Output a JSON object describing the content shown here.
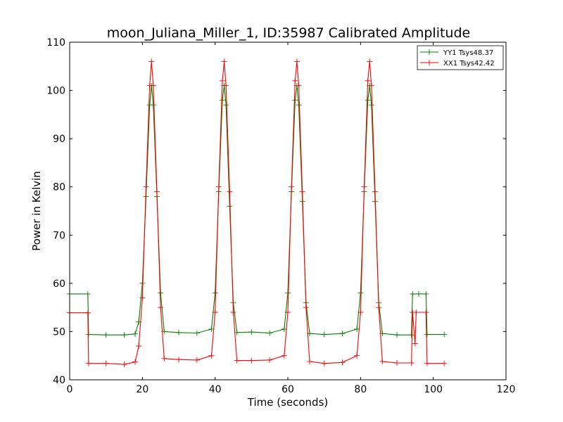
{
  "chart_data": {
    "type": "line",
    "title": "moon_Juliana_Miller_1, ID:35987 Calibrated Amplitude",
    "xlabel": "Time (seconds)",
    "ylabel": "Power in Kelvin",
    "xlim": [
      0,
      120
    ],
    "ylim": [
      40,
      110
    ],
    "xticks": [
      "0",
      "20",
      "40",
      "60",
      "80",
      "100",
      "120"
    ],
    "yticks": [
      "40",
      "50",
      "60",
      "70",
      "80",
      "90",
      "100",
      "110"
    ],
    "grid": false,
    "legend_position": "top-right",
    "marker": "plus",
    "series": [
      {
        "name": "YY1 Tsys48.37",
        "color": "#008000",
        "x": [
          0,
          5,
          5.2,
          10,
          15,
          18,
          19,
          20,
          21,
          22,
          22.5,
          23,
          24,
          25,
          26,
          30,
          35,
          39,
          40,
          41,
          42,
          42.5,
          43,
          44,
          45,
          46,
          50,
          55,
          59,
          60,
          61,
          62,
          62.5,
          63,
          64,
          65,
          66,
          70,
          75,
          79,
          80,
          81,
          82,
          82.5,
          83,
          84,
          85,
          86,
          90,
          94,
          94.3,
          96,
          98,
          98.3,
          103
        ],
        "y": [
          57.8,
          57.8,
          49.4,
          49.3,
          49.3,
          49.5,
          52,
          60,
          78,
          97,
          101,
          97,
          78,
          58,
          50,
          49.8,
          49.7,
          50.5,
          58,
          79,
          98,
          101,
          97,
          76,
          56,
          49.8,
          49.9,
          49.7,
          50.5,
          58,
          79,
          98,
          101,
          97,
          77,
          56,
          49.6,
          49.4,
          49.6,
          50.5,
          58,
          79,
          98,
          101,
          97,
          77,
          56,
          49.6,
          49.3,
          49.3,
          57.8,
          57.8,
          57.8,
          49.4,
          49.4
        ]
      },
      {
        "name": "XX1 Tsys42.42",
        "color": "#ff0000",
        "x": [
          0,
          5,
          5.2,
          10,
          15,
          18,
          19,
          20,
          21,
          22,
          22.5,
          23,
          24,
          25,
          26,
          30,
          35,
          39,
          40,
          41,
          42,
          42.5,
          43,
          44,
          45,
          46,
          50,
          55,
          59,
          60,
          61,
          62,
          62.5,
          63,
          64,
          65,
          66,
          70,
          75,
          79,
          80,
          81,
          82,
          82.5,
          83,
          84,
          85,
          86,
          90,
          94,
          94.3,
          95,
          95.3,
          98,
          98.3,
          103
        ],
        "y": [
          53.9,
          53.9,
          43.4,
          43.4,
          43.2,
          43.7,
          47,
          57,
          80,
          101,
          106,
          101,
          79,
          55,
          44.4,
          44.2,
          44.1,
          45,
          54,
          80,
          102,
          106,
          101,
          79,
          54,
          44.0,
          44.0,
          44.1,
          45,
          54,
          80,
          102,
          106,
          101,
          79,
          55,
          43.8,
          43.4,
          43.6,
          45,
          54,
          80,
          102,
          106,
          101,
          79,
          55,
          43.8,
          43.5,
          43.5,
          54,
          47.5,
          54,
          54,
          43.4,
          43.4
        ]
      }
    ]
  }
}
